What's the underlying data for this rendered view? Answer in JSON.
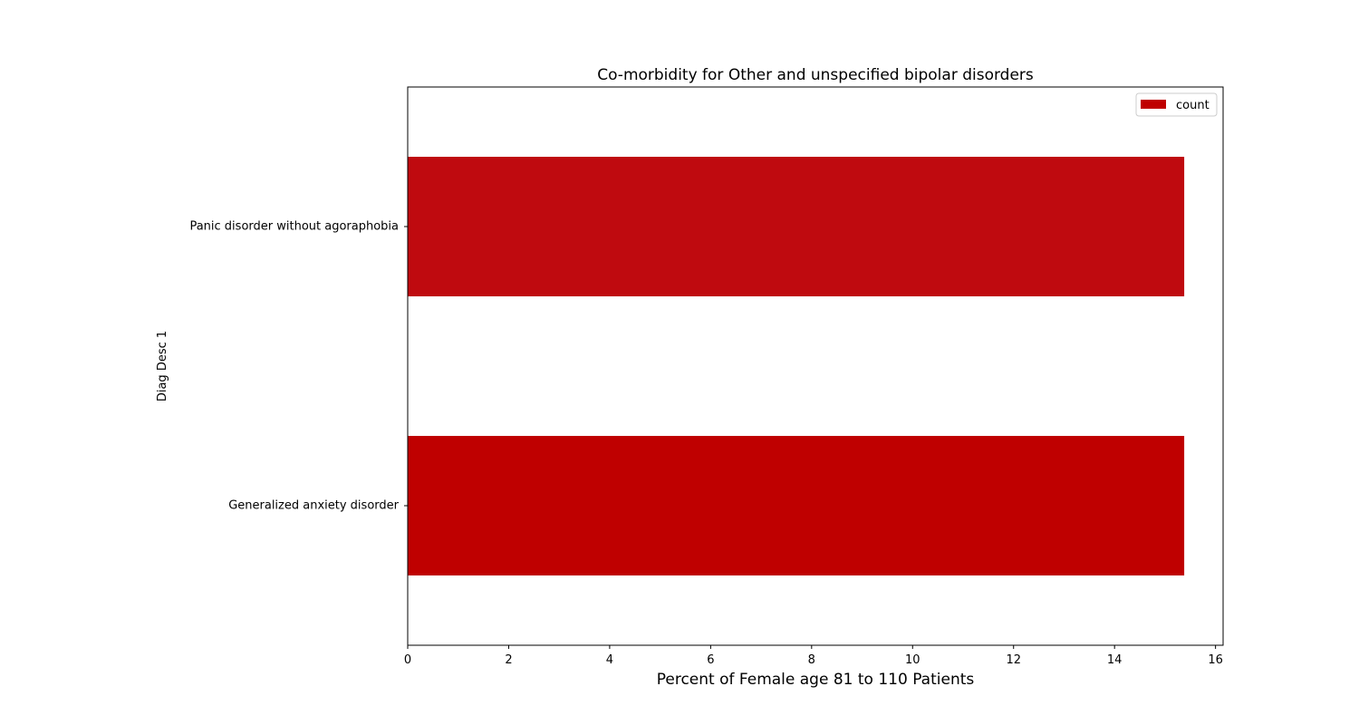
{
  "chart_data": {
    "type": "bar",
    "orientation": "horizontal",
    "title": "Co-morbidity for Other and unspecified bipolar disorders",
    "xlabel": "Percent of Female age 81 to 110 Patients",
    "ylabel": "Diag Desc 1",
    "categories": [
      "Generalized anxiety disorder",
      "Panic disorder without agoraphobia"
    ],
    "series": [
      {
        "name": "count",
        "values": [
          15.38,
          15.38
        ]
      }
    ],
    "xlim": [
      0,
      16.15
    ],
    "xticks": [
      0,
      2,
      4,
      6,
      8,
      10,
      12,
      14,
      16
    ],
    "bar_colors": [
      "#bf0000",
      "#bf0a0f"
    ],
    "legend": {
      "position": "top-right",
      "entries": [
        "count"
      ]
    },
    "grid": false
  }
}
